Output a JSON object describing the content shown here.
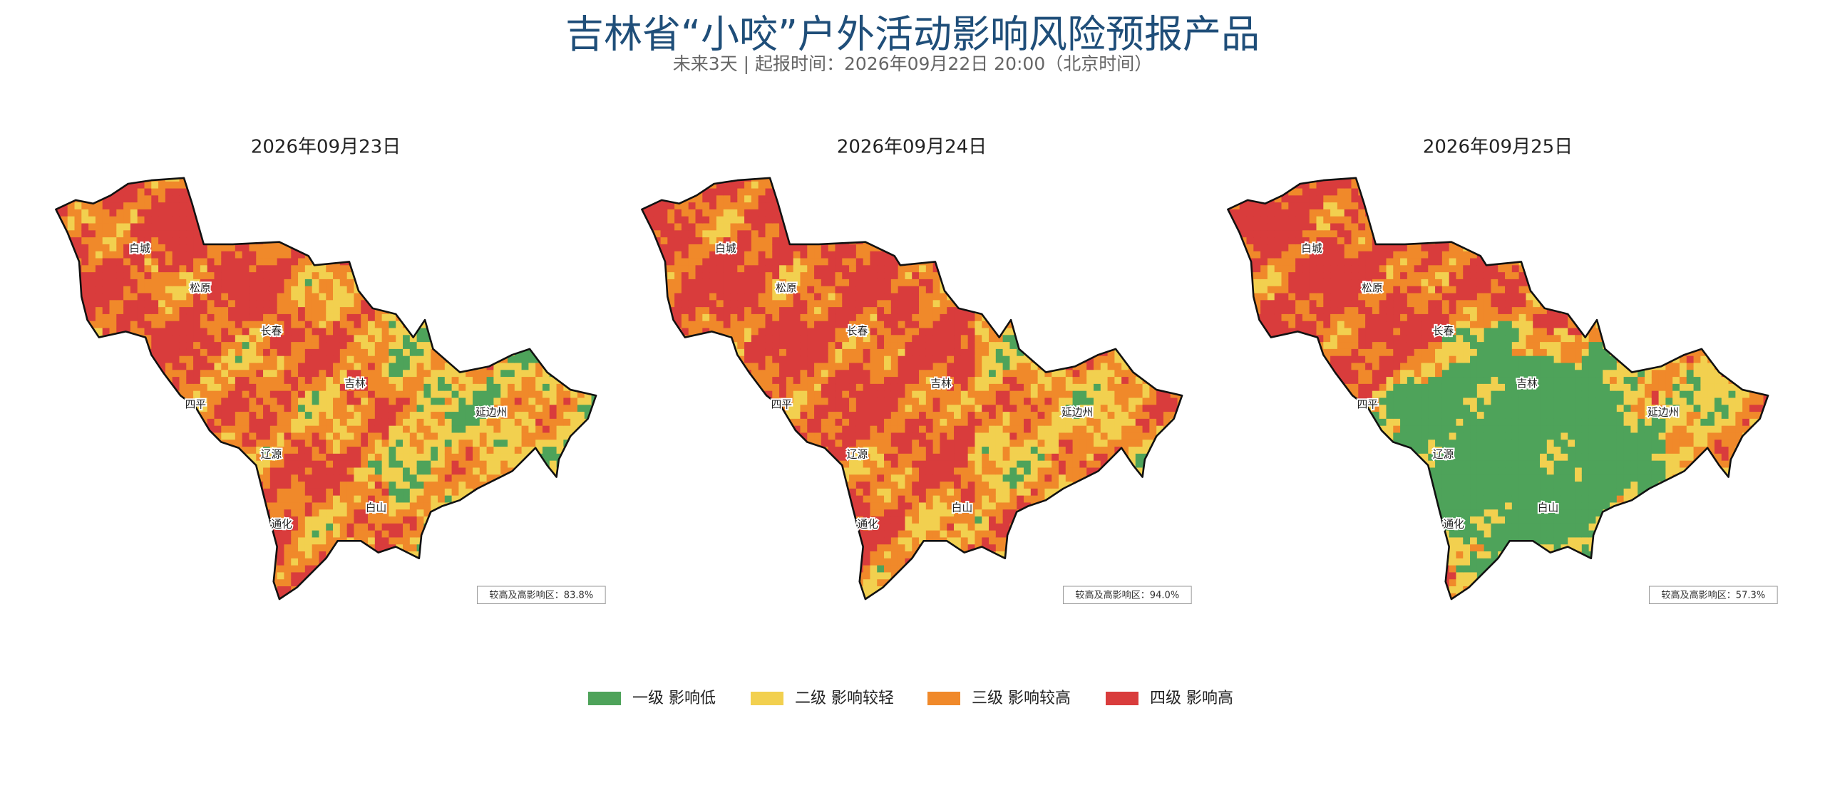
{
  "title": "吉林省“小咬”户外活动影响风险预报产品",
  "subtitle": "未来3天 | 起报时间：2026年09月22日 20:00（北京时间）",
  "cities": [
    "白城",
    "松原",
    "长春",
    "吉林",
    "四平",
    "辽源",
    "通化",
    "白山",
    "延边州"
  ],
  "panels": [
    {
      "date": "2026年09月23日",
      "stat": "较高及高影响区：83.8%"
    },
    {
      "date": "2026年09月24日",
      "stat": "较高及高影响区：94.0%"
    },
    {
      "date": "2026年09月25日",
      "stat": "较高及高影响区：57.3%"
    }
  ],
  "legend": [
    {
      "label": "一级 影响低",
      "color": "#4ea35a"
    },
    {
      "label": "二级 影响较轻",
      "color": "#f2d04f"
    },
    {
      "label": "三级 影响较高",
      "color": "#f0892a"
    },
    {
      "label": "四级 影响高",
      "color": "#d93c3c"
    }
  ]
}
